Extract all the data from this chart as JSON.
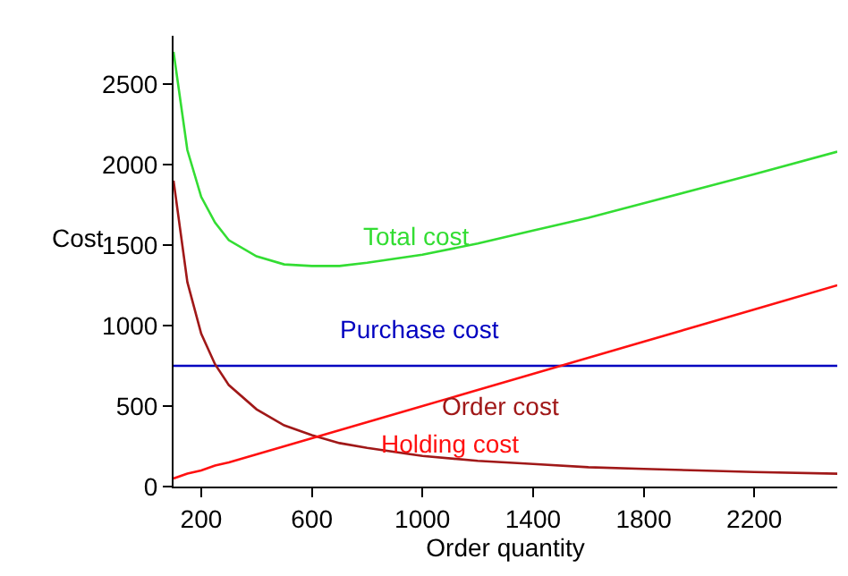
{
  "chart_data": {
    "type": "line",
    "xlabel": "Order quantity",
    "ylabel": "Cost",
    "x": [
      100,
      150,
      200,
      250,
      300,
      400,
      500,
      600,
      700,
      800,
      1000,
      1200,
      1400,
      1600,
      1800,
      2000,
      2200,
      2500
    ],
    "series": [
      {
        "name": "Total cost",
        "color": "#33dd33",
        "values": [
          2700,
          2090,
          1800,
          1640,
          1530,
          1430,
          1380,
          1370,
          1370,
          1390,
          1440,
          1510,
          1590,
          1670,
          1760,
          1850,
          1940,
          2080
        ]
      },
      {
        "name": "Purchase cost",
        "color": "#0000c0",
        "values": [
          750,
          750,
          750,
          750,
          750,
          750,
          750,
          750,
          750,
          750,
          750,
          750,
          750,
          750,
          750,
          750,
          750,
          750
        ]
      },
      {
        "name": "Order cost",
        "color": "#a01818",
        "values": [
          1900,
          1270,
          950,
          760,
          630,
          480,
          380,
          320,
          270,
          240,
          190,
          160,
          140,
          120,
          110,
          100,
          90,
          80
        ]
      },
      {
        "name": "Holding cost",
        "color": "#ff1010",
        "values": [
          50,
          80,
          100,
          130,
          150,
          200,
          250,
          300,
          350,
          400,
          500,
          600,
          700,
          800,
          900,
          1000,
          1100,
          1250
        ]
      }
    ],
    "xlim": [
      100,
      2500
    ],
    "xticks": [
      200,
      600,
      1000,
      1400,
      1800,
      2200
    ],
    "ylim": [
      0,
      2800
    ],
    "yticks": [
      0,
      500,
      1000,
      1500,
      2000,
      2500
    ],
    "grid": false,
    "legend": false,
    "marker": "none",
    "line_style": "solid"
  }
}
